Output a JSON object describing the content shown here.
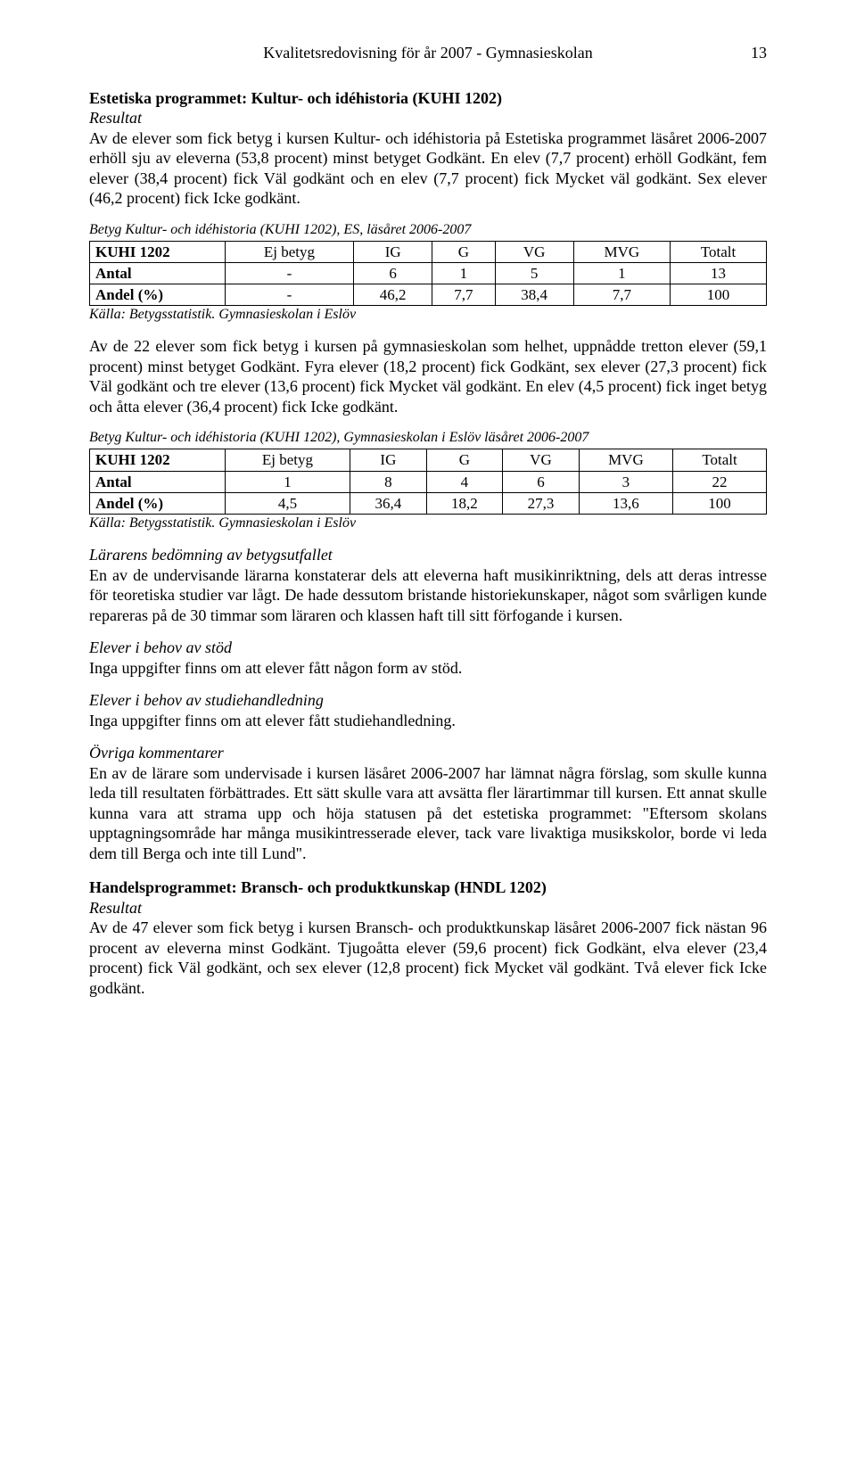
{
  "header": {
    "title": "Kvalitetsredovisning för år 2007 - Gymnasieskolan",
    "page": "13"
  },
  "s1": {
    "title": "Estetiska programmet: Kultur- och idéhistoria (KUHI 1202)",
    "subtitle": "Resultat",
    "p1": "Av de elever som fick betyg i kursen Kultur- och idéhistoria på Estetiska programmet läsåret 2006-2007 erhöll sju av eleverna (53,8 procent) minst betyget Godkänt. En elev (7,7 procent) erhöll Godkänt, fem elever (38,4 procent) fick Väl godkänt och en elev (7,7 procent) fick Mycket väl godkänt. Sex elever (46,2 procent) fick Icke godkänt."
  },
  "t1": {
    "caption": "Betyg Kultur- och idéhistoria (KUHI 1202), ES, läsåret 2006-2007",
    "h": [
      "KUHI 1202",
      "Ej betyg",
      "IG",
      "G",
      "VG",
      "MVG",
      "Totalt"
    ],
    "r1": [
      "Antal",
      "-",
      "6",
      "1",
      "5",
      "1",
      "13"
    ],
    "r2": [
      "Andel (%)",
      "-",
      "46,2",
      "7,7",
      "38,4",
      "7,7",
      "100"
    ],
    "source": "Källa: Betygsstatistik. Gymnasieskolan i Eslöv"
  },
  "s2": {
    "p1": "Av de 22 elever som fick betyg i kursen på gymnasieskolan som helhet, uppnådde tretton elever (59,1 procent) minst betyget Godkänt. Fyra elever (18,2 procent) fick Godkänt, sex elever (27,3 procent) fick Väl godkänt och tre elever (13,6 procent) fick Mycket väl godkänt. En elev (4,5 procent) fick inget betyg och åtta elever (36,4 procent) fick Icke godkänt."
  },
  "t2": {
    "caption": "Betyg Kultur- och idéhistoria (KUHI 1202), Gymnasieskolan i Eslöv läsåret 2006-2007",
    "h": [
      "KUHI 1202",
      "Ej betyg",
      "IG",
      "G",
      "VG",
      "MVG",
      "Totalt"
    ],
    "r1": [
      "Antal",
      "1",
      "8",
      "4",
      "6",
      "3",
      "22"
    ],
    "r2": [
      "Andel (%)",
      "4,5",
      "36,4",
      "18,2",
      "27,3",
      "13,6",
      "100"
    ],
    "source": "Källa: Betygsstatistik. Gymnasieskolan i Eslöv"
  },
  "s3": {
    "title": "Lärarens bedömning av betygsutfallet",
    "p1": "En av de undervisande lärarna konstaterar dels att eleverna haft musikinriktning, dels att deras intresse för teoretiska studier var lågt. De hade dessutom bristande historiekunskaper, något som svårligen kunde repareras på de 30 timmar som läraren och klassen haft till sitt förfogande i kursen."
  },
  "s4": {
    "title": "Elever i behov av stöd",
    "p1": "Inga uppgifter finns om att elever fått någon form av stöd."
  },
  "s5": {
    "title": "Elever i behov av studiehandledning",
    "p1": "Inga uppgifter finns om att elever fått studiehandledning."
  },
  "s6": {
    "title": "Övriga kommentarer",
    "p1": "En av de lärare som undervisade i kursen läsåret 2006-2007 har lämnat några förslag, som skulle kunna leda till resultaten förbättrades. Ett sätt skulle vara att avsätta fler lärartimmar till kursen. Ett annat skulle kunna vara att strama upp och höja statusen på det estetiska programmet: \"Eftersom skolans upptagningsområde har många musikintresserade elever, tack vare livaktiga musikskolor, borde vi leda dem till Berga och inte till Lund\"."
  },
  "s7": {
    "title": "Handelsprogrammet: Bransch- och produktkunskap (HNDL 1202)",
    "subtitle": "Resultat",
    "p1": "Av de 47 elever som fick betyg i kursen Bransch- och produktkunskap läsåret 2006-2007 fick nästan 96 procent av eleverna minst Godkänt. Tjugoåtta elever (59,6 procent) fick Godkänt, elva elever (23,4 procent) fick Väl godkänt, och sex elever (12,8 procent) fick Mycket väl godkänt. Två elever fick Icke godkänt."
  }
}
